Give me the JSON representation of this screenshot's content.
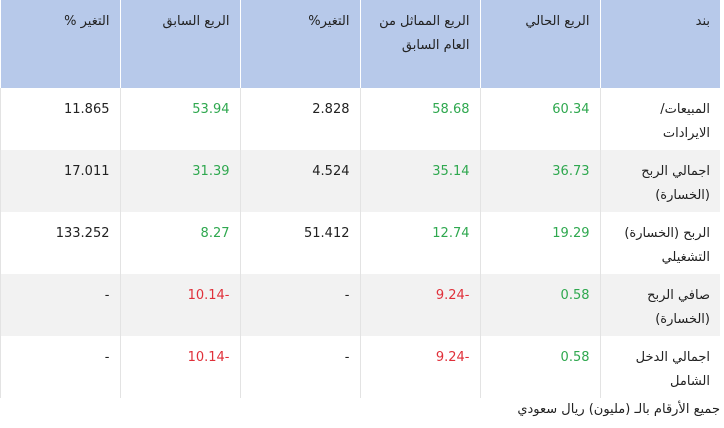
{
  "table": {
    "header": [
      "بند",
      "الربع الحالي",
      "الربع المماثل من العام السابق",
      "التغير%",
      "الربع السابق",
      "التغير %"
    ],
    "rows": [
      [
        "المبيعات/ الايرادات",
        "60.34",
        "58.68",
        "2.828",
        "53.94",
        "11.865"
      ],
      [
        "اجمالي الربح (الخسارة)",
        "36.73",
        "35.14",
        "4.524",
        "31.39",
        "17.011"
      ],
      [
        "الربح (الخسارة) التشغيلي",
        "19.29",
        "12.74",
        "51.412",
        "8.27",
        "133.252"
      ],
      [
        "صافي الربح (الخسارة)",
        "0.58",
        "-9.24",
        "-",
        "-10.14",
        "-"
      ],
      [
        "اجمالي الدخل الشامل",
        "0.58",
        "-9.24",
        "-",
        "-10.14",
        "-"
      ]
    ]
  },
  "note": "جميع الأرقام بالـ (مليون) ريال سعودي"
}
